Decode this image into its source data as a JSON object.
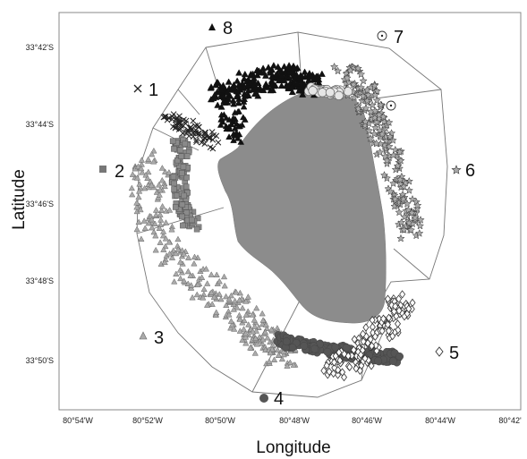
{
  "map": {
    "xlabel": "Longitude",
    "ylabel": "Latitude",
    "x_ticks": [
      "80°54'W",
      "80°52'W",
      "80°50'W",
      "80°48'W",
      "80°46'W",
      "80°44'W",
      "80°42'"
    ],
    "y_ticks": [
      "33°42'S",
      "33°44'S",
      "33°46'S",
      "33°48'S",
      "33°50'S"
    ],
    "island_color": "#8c8c8c",
    "zones": [
      {
        "number": "1",
        "marker": "cross-icon"
      },
      {
        "number": "2",
        "marker": "square-icon"
      },
      {
        "number": "3",
        "marker": "triangle-gray-icon"
      },
      {
        "number": "4",
        "marker": "circle-filled-icon"
      },
      {
        "number": "5",
        "marker": "diamond-icon"
      },
      {
        "number": "6",
        "marker": "star-icon"
      },
      {
        "number": "7",
        "marker": "dotted-circle-icon"
      },
      {
        "number": "8",
        "marker": "triangle-black-icon"
      }
    ]
  }
}
